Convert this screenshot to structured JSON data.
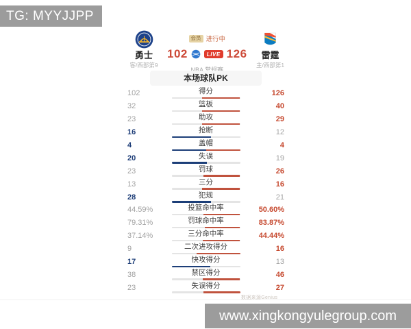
{
  "banners": {
    "top_left": "TG: MYYJJPP",
    "bottom_right": "www.xingkongyulegroup.com"
  },
  "scoreboard": {
    "status_badge": "会员",
    "status_text": "进行中",
    "left_team": {
      "name": "勇士",
      "rank": "客/西部第9"
    },
    "right_team": {
      "name": "雷霆",
      "rank": "主/西部第1"
    },
    "left_score": "102",
    "right_score": "126",
    "live_label": "LIVE",
    "league": "NBA 常规赛"
  },
  "pk_title": "本场球队PK",
  "stats": {
    "rows": [
      {
        "label": "得分",
        "left": "102",
        "right": "126"
      },
      {
        "label": "篮板",
        "left": "32",
        "right": "40"
      },
      {
        "label": "助攻",
        "left": "23",
        "right": "29"
      },
      {
        "label": "抢断",
        "left": "16",
        "right": "12"
      },
      {
        "label": "盖帽",
        "left": "4",
        "right": "4"
      },
      {
        "label": "失误",
        "left": "20",
        "right": "19"
      },
      {
        "label": "罚球",
        "left": "23",
        "right": "26"
      },
      {
        "label": "三分",
        "left": "13",
        "right": "16"
      },
      {
        "label": "犯规",
        "left": "28",
        "right": "21"
      },
      {
        "label": "投篮命中率",
        "left": "44.59%",
        "right": "50.60%"
      },
      {
        "label": "罚球命中率",
        "left": "79.31%",
        "right": "83.87%"
      },
      {
        "label": "三分命中率",
        "left": "37.14%",
        "right": "44.44%"
      },
      {
        "label": "二次进攻得分",
        "left": "9",
        "right": "16"
      },
      {
        "label": "快攻得分",
        "left": "17",
        "right": "13"
      },
      {
        "label": "禁区得分",
        "left": "38",
        "right": "46"
      },
      {
        "label": "失误得分",
        "left": "23",
        "right": "27"
      }
    ]
  },
  "watermark": "数据来源Genius",
  "colors": {
    "left_accent": "#1e3e78",
    "right_accent": "#c6492f",
    "score_red": "#cd4a38",
    "live_bg": "#e03c2d",
    "status_orange": "#cd7350",
    "banner_gray": "#9c9c9c"
  }
}
